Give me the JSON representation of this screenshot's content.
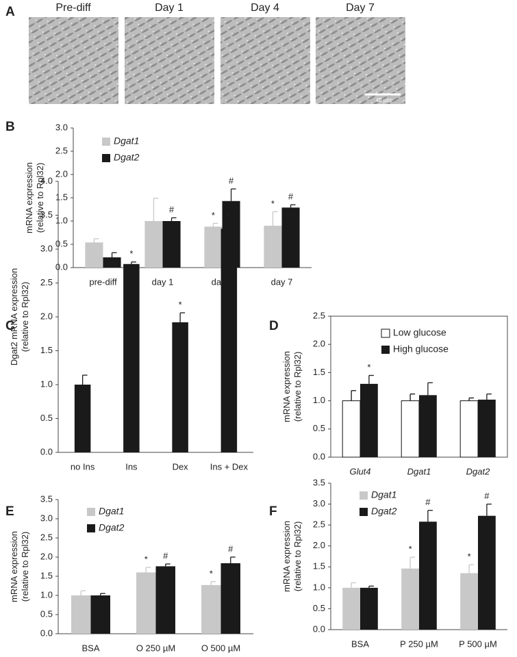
{
  "panel_a": {
    "panel": "A",
    "images": [
      "Pre-diff",
      "Day 1",
      "Day 4",
      "Day 7"
    ],
    "scale_bar": "40 µm"
  },
  "chart_data": [
    {
      "panel": "B",
      "type": "bar",
      "ylabel": [
        "mRNA expression",
        "(relative to Rpl32)"
      ],
      "categories": [
        "pre-diff",
        "day 1",
        "day 4",
        "day 7"
      ],
      "series": [
        {
          "name": "Dgat1",
          "color": "#c8c8c8",
          "values": [
            0.54,
            1.0,
            0.88,
            0.9
          ],
          "errors": [
            0.08,
            0.49,
            0.07,
            0.3
          ],
          "annotations": [
            null,
            null,
            "*",
            "*"
          ]
        },
        {
          "name": "Dgat2",
          "color": "#1a1a1a",
          "values": [
            0.22,
            1.0,
            1.43,
            1.29
          ],
          "errors": [
            0.1,
            0.07,
            0.26,
            0.06
          ],
          "annotations": [
            null,
            "#",
            "#",
            "#"
          ]
        }
      ],
      "ylim": [
        0,
        3
      ],
      "yticks": [
        {
          "value": 0,
          "label": "0.0"
        },
        0.5,
        {
          "value": 1,
          "label": "1.0"
        },
        1.5,
        {
          "value": 2,
          "label": "2.0"
        },
        2.5,
        {
          "value": 3,
          "label": "3.0"
        }
      ],
      "legend": "upper left",
      "legend_italic": true,
      "frame": false,
      "italic_categories": false
    },
    {
      "panel": "C",
      "type": "bar",
      "ylabel": [
        "Dgat2 mRNA expression",
        "(relative to Rpl32)"
      ],
      "categories": [
        "no Ins",
        "Ins",
        "Dex",
        "Ins + Dex"
      ],
      "series": [
        {
          "color": "#1a1a1a",
          "values": [
            1.0,
            2.78,
            1.92,
            3.3
          ],
          "errors": [
            0.14,
            0.03,
            0.14,
            0.06
          ],
          "annotations": [
            null,
            "*",
            "*",
            "*"
          ]
        }
      ],
      "ylim": [
        0,
        4
      ],
      "yticks": [
        {
          "value": 0,
          "label": "0.0"
        },
        0.5,
        {
          "value": 1,
          "label": "1.0"
        },
        1.5,
        {
          "value": 2,
          "label": "2.0"
        },
        2.5,
        {
          "value": 3,
          "label": "3.0"
        },
        3.5,
        {
          "value": 4,
          "label": "4.0"
        }
      ],
      "frame": false,
      "italic_categories": false
    },
    {
      "panel": "D",
      "type": "bar",
      "ylabel": [
        "mRNA expression",
        "(relative to Rpl32)"
      ],
      "categories": [
        "Glut4",
        "Dgat1",
        "Dgat2"
      ],
      "series": [
        {
          "name": "Low glucose",
          "color": "#ffffff",
          "values": [
            1.0,
            1.0,
            1.0
          ],
          "errors": [
            0.18,
            0.12,
            0.05
          ],
          "annotations": [
            null,
            null,
            null
          ]
        },
        {
          "name": "High glucose",
          "color": "#1a1a1a",
          "values": [
            1.3,
            1.1,
            1.02
          ],
          "errors": [
            0.15,
            0.22,
            0.1
          ],
          "annotations": [
            "*",
            null,
            null
          ]
        }
      ],
      "ylim": [
        0,
        2.5
      ],
      "yticks": [
        {
          "value": 0,
          "label": "0.0"
        },
        0.5,
        {
          "value": 1,
          "label": "1.0"
        },
        1.5,
        {
          "value": 2,
          "label": "2.0"
        },
        2.5
      ],
      "legend": "upper center",
      "legend_italic": false,
      "frame": true,
      "italic_categories": true
    },
    {
      "panel": "E",
      "type": "bar",
      "ylabel": [
        "mRNA expression",
        "(relative to Rpl32)"
      ],
      "categories": [
        "BSA",
        "O 250 µM",
        "O 500 µM"
      ],
      "series": [
        {
          "name": "Dgat1",
          "color": "#c8c8c8",
          "values": [
            1.0,
            1.6,
            1.27
          ],
          "errors": [
            0.12,
            0.13,
            0.09
          ],
          "annotations": [
            null,
            "*",
            "*"
          ]
        },
        {
          "name": "Dgat2",
          "color": "#1a1a1a",
          "values": [
            1.0,
            1.76,
            1.84
          ],
          "errors": [
            0.05,
            0.06,
            0.16
          ],
          "annotations": [
            null,
            "#",
            "#"
          ]
        }
      ],
      "ylim": [
        0,
        3.5
      ],
      "yticks": [
        {
          "value": 0,
          "label": "0.0"
        },
        0.5,
        {
          "value": 1,
          "label": "1.0"
        },
        1.5,
        {
          "value": 2,
          "label": "2.0"
        },
        2.5,
        {
          "value": 3,
          "label": "3.0"
        },
        3.5
      ],
      "legend": "upper left",
      "legend_italic": true,
      "frame": false,
      "italic_categories": false
    },
    {
      "panel": "F",
      "type": "bar",
      "ylabel": [
        "mRNA expression",
        "(relative to Rpl32)"
      ],
      "categories": [
        "BSA",
        "P 250 µM",
        "P 500 µM"
      ],
      "series": [
        {
          "name": "Dgat1",
          "color": "#c8c8c8",
          "values": [
            1.0,
            1.46,
            1.35
          ],
          "errors": [
            0.12,
            0.27,
            0.2
          ],
          "annotations": [
            null,
            "*",
            "*"
          ]
        },
        {
          "name": "Dgat2",
          "color": "#1a1a1a",
          "values": [
            1.0,
            2.58,
            2.72
          ],
          "errors": [
            0.04,
            0.27,
            0.28
          ],
          "annotations": [
            null,
            "#",
            "#"
          ]
        }
      ],
      "ylim": [
        0,
        3.5
      ],
      "yticks": [
        {
          "value": 0,
          "label": "0.0"
        },
        0.5,
        {
          "value": 1,
          "label": "1.0"
        },
        1.5,
        {
          "value": 2,
          "label": "2.0"
        },
        2.5,
        {
          "value": 3,
          "label": "3.0"
        },
        3.5
      ],
      "legend": "upper left",
      "legend_italic": true,
      "frame": false,
      "italic_categories": false
    }
  ]
}
